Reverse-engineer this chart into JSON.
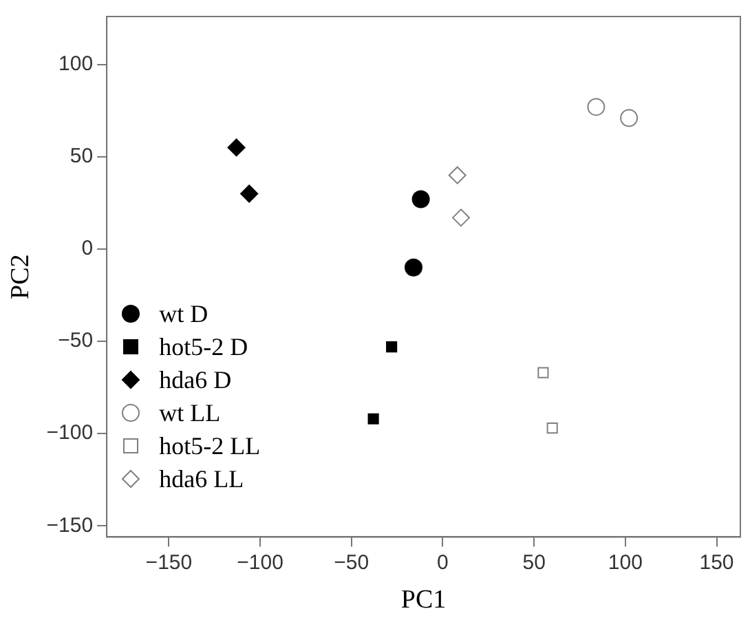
{
  "chart_data": {
    "type": "scatter",
    "xlabel": "PC1",
    "ylabel": "PC2",
    "xlim": [
      -184,
      163
    ],
    "xticks": [
      -150,
      -100,
      -50,
      0,
      50,
      100,
      150
    ],
    "ylim": [
      -156,
      126
    ],
    "yticks": [
      -150,
      -100,
      -50,
      0,
      50,
      100
    ],
    "grid": false,
    "legend": "bottom left",
    "series": [
      {
        "name": "wt D",
        "color": "#000000",
        "marker": "circle",
        "x": [
          -12,
          -16
        ],
        "values": [
          27,
          -10
        ]
      },
      {
        "name": "hot5-2 D",
        "color": "#000000",
        "marker": "square",
        "x": [
          -28,
          -38
        ],
        "values": [
          -53,
          -92
        ]
      },
      {
        "name": "hda6 D",
        "color": "#000000",
        "marker": "diamond",
        "x": [
          -113,
          -106
        ],
        "values": [
          55,
          30
        ]
      },
      {
        "name": "wt LL",
        "color": "#808080",
        "marker": "circle",
        "x": [
          84,
          102
        ],
        "values": [
          77,
          71
        ]
      },
      {
        "name": "hot5-2 LL",
        "color": "#808080",
        "marker": "square",
        "x": [
          55,
          60
        ],
        "values": [
          -67,
          -97
        ]
      },
      {
        "name": "hda6 LL",
        "color": "#808080",
        "marker": "diamond",
        "x": [
          8,
          10
        ],
        "values": [
          40,
          17
        ]
      }
    ]
  }
}
